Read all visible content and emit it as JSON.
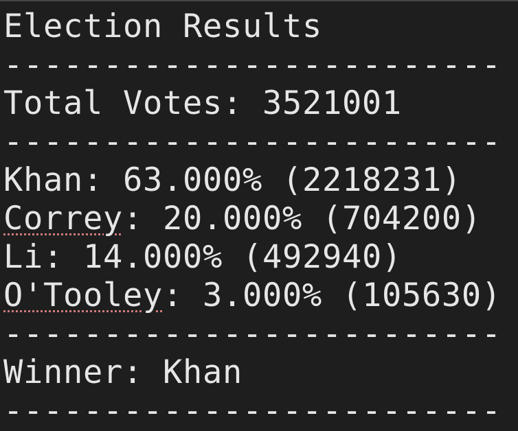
{
  "terminal": {
    "title": "Election Results",
    "separator": "-------------------------",
    "total_votes": "Total Votes: 3521001",
    "candidates": [
      {
        "name": "Khan",
        "rest": ": 63.000% (2218231)"
      },
      {
        "name": "Correy",
        "rest": ": 20.000% (704200)"
      },
      {
        "name": "Li",
        "rest": ": 14.000% (492940)"
      },
      {
        "name": "O'Tooley",
        "rest": ": 3.000% (105630)"
      }
    ],
    "winner": "Winner: Khan"
  },
  "colors": {
    "background": "#1e1e1e",
    "text": "#e6e6e6",
    "spellcheck_underline": "#d07a7a"
  }
}
